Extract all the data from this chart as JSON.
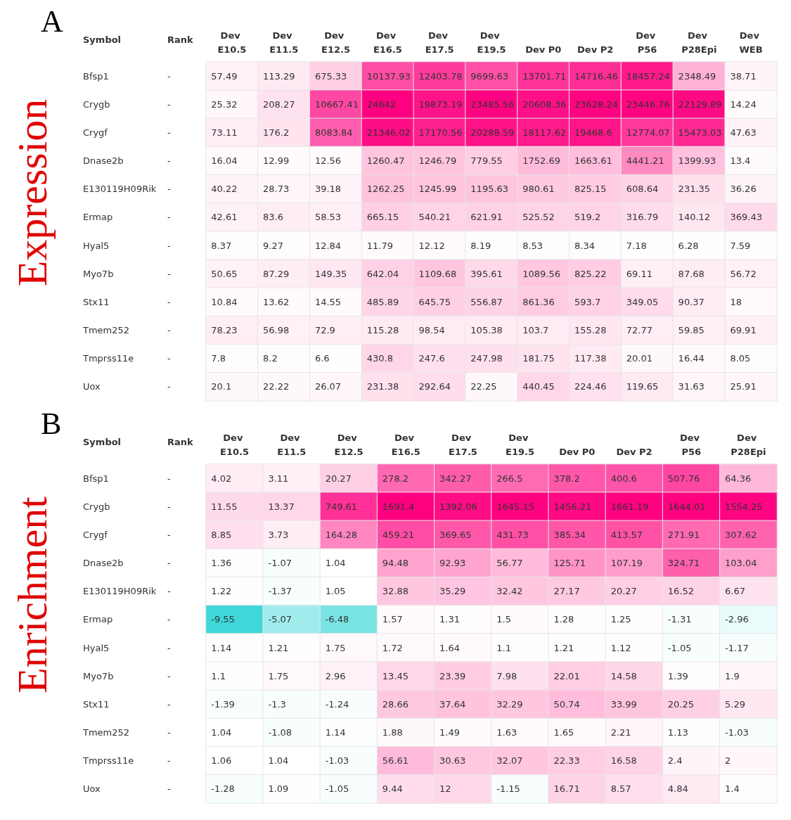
{
  "chart_data": [
    {
      "type": "heatmap",
      "title": "A",
      "annotations": [
        "Expression"
      ],
      "ylabel": "Symbol",
      "y2label": "Rank",
      "data_labels": true,
      "categories": [
        "Dev E10.5",
        "Dev E11.5",
        "Dev E12.5",
        "Dev E16.5",
        "Dev E17.5",
        "Dev E19.5",
        "Dev P0",
        "Dev P2",
        "Dev P56",
        "Dev P28Epi",
        "Dev WEB"
      ],
      "y_categories": [
        "Bfsp1",
        "Crygb",
        "Crygf",
        "Dnase2b",
        "E130119H09Rik",
        "Ermap",
        "Hyal5",
        "Myo7b",
        "Stx11",
        "Tmem252",
        "Tmprss11e",
        "Uox"
      ],
      "y2_categories": [
        "-",
        "-",
        "-",
        "-",
        "-",
        "-",
        "-",
        "-",
        "-",
        "-",
        "-",
        "-"
      ],
      "cells": [
        [
          57.49,
          113.29,
          675.33,
          10137.93,
          12403.78,
          9699.63,
          13701.71,
          14716.46,
          18457.24,
          2348.49,
          38.71
        ],
        [
          25.32,
          208.27,
          10667.41,
          24642,
          19873.19,
          23485.56,
          20608.36,
          23628.24,
          23446.76,
          22129.89,
          14.24
        ],
        [
          73.11,
          176.2,
          8083.84,
          21346.02,
          17170.56,
          20288.59,
          18117.62,
          19468.6,
          12774.07,
          15473.03,
          47.63
        ],
        [
          16.04,
          12.99,
          12.56,
          1260.47,
          1246.79,
          779.55,
          1752.69,
          1663.61,
          4441.21,
          1399.93,
          13.4
        ],
        [
          40.22,
          28.73,
          39.18,
          1262.25,
          1245.99,
          1195.63,
          980.61,
          825.15,
          608.64,
          231.35,
          36.26
        ],
        [
          42.61,
          83.6,
          58.53,
          665.15,
          540.21,
          621.91,
          525.52,
          519.2,
          316.79,
          140.12,
          369.43
        ],
        [
          8.37,
          9.27,
          12.84,
          11.79,
          12.12,
          8.19,
          8.53,
          8.34,
          7.18,
          6.28,
          7.59
        ],
        [
          50.65,
          87.29,
          149.35,
          642.04,
          1109.68,
          395.61,
          1089.56,
          825.22,
          69.11,
          87.68,
          56.72
        ],
        [
          10.84,
          13.62,
          14.55,
          485.89,
          645.75,
          556.87,
          861.36,
          593.7,
          349.05,
          90.37,
          18
        ],
        [
          78.23,
          56.98,
          72.9,
          115.28,
          98.54,
          105.38,
          103.7,
          155.28,
          72.77,
          59.85,
          69.91
        ],
        [
          7.8,
          8.2,
          6.6,
          430.8,
          247.6,
          247.98,
          181.75,
          117.38,
          20.01,
          16.44,
          8.05
        ],
        [
          20.1,
          22.22,
          26.07,
          231.38,
          292.64,
          22.25,
          440.45,
          224.46,
          119.65,
          31.63,
          25.91
        ]
      ]
    },
    {
      "type": "heatmap",
      "title": "B",
      "annotations": [
        "Enrichment"
      ],
      "ylabel": "Symbol",
      "y2label": "Rank",
      "data_labels": true,
      "categories": [
        "Dev E10.5",
        "Dev E11.5",
        "Dev E12.5",
        "Dev E16.5",
        "Dev E17.5",
        "Dev E19.5",
        "Dev P0",
        "Dev P2",
        "Dev P56",
        "Dev P28Epi"
      ],
      "y_categories": [
        "Bfsp1",
        "Crygb",
        "Crygf",
        "Dnase2b",
        "E130119H09Rik",
        "Ermap",
        "Hyal5",
        "Myo7b",
        "Stx11",
        "Tmem252",
        "Tmprss11e",
        "Uox"
      ],
      "y2_categories": [
        "-",
        "-",
        "-",
        "-",
        "-",
        "-",
        "-",
        "-",
        "-",
        "-",
        "-",
        "-"
      ],
      "cells": [
        [
          4.02,
          3.11,
          20.27,
          278.2,
          342.27,
          266.5,
          378.2,
          400.6,
          507.76,
          64.36
        ],
        [
          11.55,
          13.37,
          749.61,
          1691.4,
          1392.06,
          1645.15,
          1456.21,
          1661.19,
          1644.01,
          1554.25
        ],
        [
          8.85,
          3.73,
          164.28,
          459.21,
          369.65,
          431.73,
          385.34,
          413.57,
          271.91,
          307.62
        ],
        [
          1.36,
          -1.07,
          1.04,
          94.48,
          92.93,
          56.77,
          125.71,
          107.19,
          324.71,
          103.04
        ],
        [
          1.22,
          -1.37,
          1.05,
          32.88,
          35.29,
          32.42,
          27.17,
          20.27,
          16.52,
          6.67
        ],
        [
          -9.55,
          -5.07,
          -6.48,
          1.57,
          1.31,
          1.5,
          1.28,
          1.25,
          -1.31,
          -2.96
        ],
        [
          1.14,
          1.21,
          1.75,
          1.72,
          1.64,
          1.1,
          1.21,
          1.12,
          -1.05,
          -1.17
        ],
        [
          1.1,
          1.75,
          2.96,
          13.45,
          23.39,
          7.98,
          22.01,
          14.58,
          1.39,
          1.9
        ],
        [
          -1.39,
          -1.3,
          -1.24,
          28.66,
          37.64,
          32.29,
          50.74,
          33.99,
          20.25,
          5.29
        ],
        [
          1.04,
          -1.08,
          1.14,
          1.88,
          1.49,
          1.63,
          1.65,
          2.21,
          1.13,
          -1.03
        ],
        [
          1.06,
          1.04,
          -1.03,
          56.61,
          30.63,
          32.07,
          22.33,
          16.58,
          2.4,
          2
        ],
        [
          -1.28,
          1.09,
          -1.05,
          9.44,
          12,
          -1.15,
          16.71,
          8.57,
          4.84,
          1.4
        ]
      ]
    }
  ]
}
